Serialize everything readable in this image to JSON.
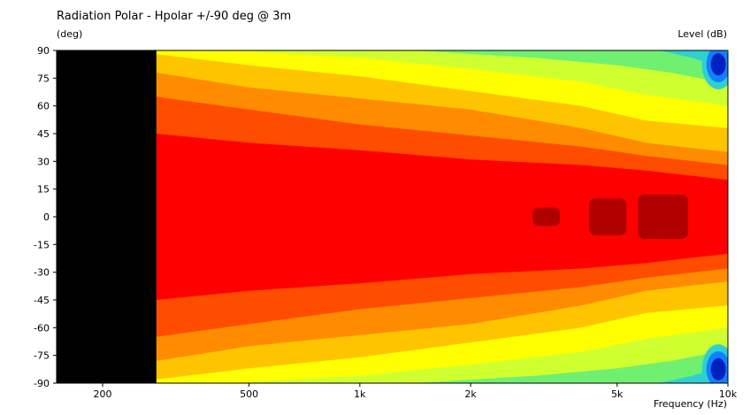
{
  "chart_data": {
    "type": "heatmap",
    "title": "Radiation Polar - Hpolar +/-90 deg @ 3m",
    "ylabel": "(deg)",
    "xlabel": "Frequency  (Hz)",
    "zlabel": "Level  (dB)",
    "x_scale": "log",
    "xlim": [
      150,
      10000
    ],
    "ylim": [
      -90,
      90
    ],
    "x_ticks": [
      {
        "value": 200,
        "label": "200"
      },
      {
        "value": 500,
        "label": "500"
      },
      {
        "value": 1000,
        "label": "1k"
      },
      {
        "value": 2000,
        "label": "2k"
      },
      {
        "value": 5000,
        "label": "5k"
      },
      {
        "value": 10000,
        "label": "10k"
      }
    ],
    "y_ticks": [
      90,
      75,
      60,
      45,
      30,
      15,
      0,
      -15,
      -30,
      -45,
      -60,
      -75,
      -90
    ],
    "no_data_below_hz": 280,
    "contour_colors": [
      "#b00000",
      "#ff0000",
      "#ff4d00",
      "#ff8c00",
      "#ffc400",
      "#ffff00",
      "#d0ff30",
      "#70f070",
      "#30d0d0",
      "#1080ff",
      "#0020c0"
    ],
    "contours": [
      {
        "level": 1,
        "color": "#ff0000",
        "upper": [
          [
            280,
            45
          ],
          [
            500,
            40
          ],
          [
            1000,
            36
          ],
          [
            2000,
            31
          ],
          [
            4000,
            28
          ],
          [
            6000,
            25
          ],
          [
            10000,
            20
          ]
        ],
        "lower": [
          [
            280,
            -45
          ],
          [
            500,
            -40
          ],
          [
            1000,
            -36
          ],
          [
            2000,
            -31
          ],
          [
            4000,
            -28
          ],
          [
            6000,
            -25
          ],
          [
            10000,
            -20
          ]
        ]
      },
      {
        "level": 2,
        "color": "#ff4d00",
        "upper": [
          [
            280,
            65
          ],
          [
            500,
            58
          ],
          [
            1000,
            50
          ],
          [
            2000,
            44
          ],
          [
            4000,
            38
          ],
          [
            6000,
            33
          ],
          [
            10000,
            28
          ]
        ],
        "lower": [
          [
            280,
            -65
          ],
          [
            500,
            -58
          ],
          [
            1000,
            -50
          ],
          [
            2000,
            -44
          ],
          [
            4000,
            -38
          ],
          [
            6000,
            -33
          ],
          [
            10000,
            -28
          ]
        ]
      },
      {
        "level": 3,
        "color": "#ff8c00",
        "upper": [
          [
            280,
            78
          ],
          [
            500,
            70
          ],
          [
            1000,
            64
          ],
          [
            2000,
            58
          ],
          [
            4000,
            48
          ],
          [
            6000,
            40
          ],
          [
            10000,
            35
          ]
        ],
        "lower": [
          [
            280,
            -78
          ],
          [
            500,
            -70
          ],
          [
            1000,
            -64
          ],
          [
            2000,
            -58
          ],
          [
            4000,
            -48
          ],
          [
            6000,
            -40
          ],
          [
            10000,
            -35
          ]
        ]
      },
      {
        "level": 4,
        "color": "#ffc400",
        "upper": [
          [
            280,
            88
          ],
          [
            500,
            82
          ],
          [
            1000,
            76
          ],
          [
            2000,
            68
          ],
          [
            4000,
            60
          ],
          [
            6000,
            52
          ],
          [
            10000,
            48
          ]
        ],
        "lower": [
          [
            280,
            -88
          ],
          [
            500,
            -82
          ],
          [
            1000,
            -76
          ],
          [
            2000,
            -68
          ],
          [
            4000,
            -60
          ],
          [
            6000,
            -52
          ],
          [
            10000,
            -48
          ]
        ]
      },
      {
        "level": 5,
        "color": "#ffff00",
        "upper": [
          [
            450,
            90
          ],
          [
            1000,
            86
          ],
          [
            2000,
            80
          ],
          [
            4000,
            73
          ],
          [
            6000,
            66
          ],
          [
            10000,
            60
          ]
        ],
        "lower": [
          [
            450,
            -90
          ],
          [
            1000,
            -86
          ],
          [
            2000,
            -80
          ],
          [
            4000,
            -73
          ],
          [
            6000,
            -66
          ],
          [
            10000,
            -60
          ]
        ]
      },
      {
        "level": 6,
        "color": "#d0ff30",
        "upper": [
          [
            1400,
            90
          ],
          [
            3000,
            86
          ],
          [
            5000,
            82
          ],
          [
            7000,
            78
          ],
          [
            10000,
            72
          ]
        ],
        "lower": [
          [
            1400,
            -90
          ],
          [
            3000,
            -86
          ],
          [
            5000,
            -82
          ],
          [
            7000,
            -78
          ],
          [
            10000,
            -72
          ]
        ]
      },
      {
        "level": 7,
        "color": "#70f070",
        "upper": [
          [
            6500,
            90
          ],
          [
            8000,
            86
          ],
          [
            10000,
            80
          ]
        ],
        "lower": [
          [
            6500,
            -90
          ],
          [
            8000,
            -86
          ],
          [
            10000,
            -80
          ]
        ]
      }
    ],
    "hotspots": [
      {
        "color": "#b00000",
        "x": [
          2950,
          3500
        ],
        "y": [
          -5,
          5
        ]
      },
      {
        "color": "#b00000",
        "x": [
          4200,
          5300
        ],
        "y": [
          -10,
          10
        ]
      },
      {
        "color": "#b00000",
        "x": [
          5700,
          7800
        ],
        "y": [
          -12,
          12
        ]
      }
    ],
    "corner_zones": [
      {
        "x": [
          8300,
          10000
        ],
        "y": [
          75,
          90
        ],
        "colors": [
          "#30d0d0",
          "#1080ff",
          "#0020c0"
        ]
      },
      {
        "x": [
          8300,
          10000
        ],
        "y": [
          -90,
          -75
        ],
        "colors": [
          "#30d0d0",
          "#1080ff",
          "#0020c0"
        ]
      }
    ]
  }
}
